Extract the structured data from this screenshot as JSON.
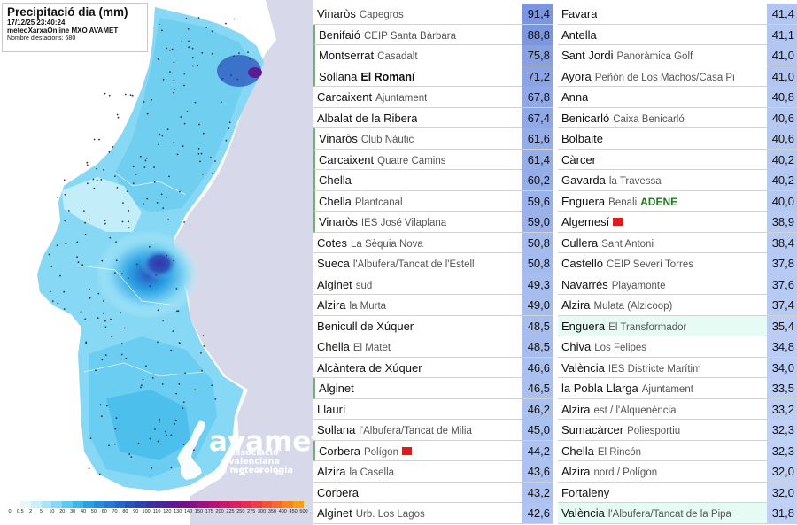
{
  "map": {
    "title": "Precipitació dia (mm)",
    "datetime": "17/12/25 23:40:24",
    "source": "meteoXarxaOnline MXO AVAMET",
    "stations": "Nombre d'estacions: 680",
    "logo_name": "avamet",
    "logo_sub_1": "associació valenciana",
    "logo_sub_2": "de meteorologia",
    "legend_labels": [
      "0",
      "0,5",
      "2",
      "5",
      "10",
      "20",
      "30",
      "40",
      "50",
      "60",
      "70",
      "80",
      "90",
      "100",
      "110",
      "120",
      "130",
      "140",
      "150",
      "175",
      "200",
      "225",
      "250",
      "275",
      "300",
      "350",
      "400",
      "450",
      "500"
    ],
    "legend_colors": [
      "#ffffff",
      "#e4f7fb",
      "#c9effa",
      "#a9e5f8",
      "#86d8f4",
      "#5ec9ef",
      "#3bb6ea",
      "#2aa0e3",
      "#238cdb",
      "#2479d3",
      "#2766c9",
      "#2a54bd",
      "#2d43b0",
      "#3a32a3",
      "#4a269b",
      "#5c1b92",
      "#6f138a",
      "#841283",
      "#9b137c",
      "#b21474",
      "#c9186b",
      "#d92060",
      "#e52c54",
      "#ee3d47",
      "#f25438",
      "#f46c2b",
      "#f5861f",
      "#f6a114"
    ],
    "sea_color": "#d8d8eb",
    "land_color": "#ffffff"
  },
  "table": {
    "left": [
      {
        "name": "Vinaròs",
        "sub": "Capegros",
        "value": "91,4"
      },
      {
        "name": "Benifaió",
        "sub": "CEIP Santa Bàrbara",
        "value": "88,8"
      },
      {
        "name": "Montserrat",
        "sub": "Casadalt",
        "value": "75,8"
      },
      {
        "name": "Sollana",
        "sub": "El Romaní",
        "value": "71,2"
      },
      {
        "name": "Carcaixent",
        "sub": "Ajuntament",
        "value": "67,8"
      },
      {
        "name": "Albalat de la Ribera",
        "sub": "",
        "value": "67,4"
      },
      {
        "name": "Vinaròs",
        "sub": "Club Nàutic",
        "value": "61,6"
      },
      {
        "name": "Carcaixent",
        "sub": "Quatre Camins",
        "value": "61,4"
      },
      {
        "name": "Chella",
        "sub": "",
        "value": "60,2"
      },
      {
        "name": "Chella",
        "sub": "Plantcanal",
        "value": "59,6"
      },
      {
        "name": "Vinaròs",
        "sub": "IES José Vilaplana",
        "value": "59,0"
      },
      {
        "name": "Cotes",
        "sub": "La Sèquia Nova",
        "value": "50,8"
      },
      {
        "name": "Sueca",
        "sub": "l'Albufera/Tancat de l'Estell",
        "value": "50,8"
      },
      {
        "name": "Alginet",
        "sub": "sud",
        "value": "49,3"
      },
      {
        "name": "Alzira",
        "sub": "la Murta",
        "value": "49,0"
      },
      {
        "name": "Benicull de Xúquer",
        "sub": "",
        "value": "48,5"
      },
      {
        "name": "Chella",
        "sub": "El Matet",
        "value": "48,5"
      },
      {
        "name": "Alcàntera de Xúquer",
        "sub": "",
        "value": "46,6"
      },
      {
        "name": "Alginet",
        "sub": "",
        "value": "46,5"
      },
      {
        "name": "Llaurí",
        "sub": "",
        "value": "46,2"
      },
      {
        "name": "Sollana",
        "sub": "l'Albufera/Tancat de Milia",
        "value": "45,0"
      },
      {
        "name": "Corbera",
        "sub": "Polígon",
        "value": "44,2"
      },
      {
        "name": "Alzira",
        "sub": "la Casella",
        "value": "43,6"
      },
      {
        "name": "Corbera",
        "sub": "",
        "value": "43,2"
      },
      {
        "name": "Alginet",
        "sub": "Urb. Los Lagos",
        "value": "42,6"
      }
    ],
    "right": [
      {
        "name": "Favara",
        "sub": "",
        "value": "41,4"
      },
      {
        "name": "Antella",
        "sub": "",
        "value": "41,1"
      },
      {
        "name": "Sant Jordi",
        "sub": "Panoràmica Golf",
        "value": "41,0"
      },
      {
        "name": "Ayora",
        "sub": "Peñón de Los Machos/Casa Pi",
        "value": "41,0"
      },
      {
        "name": "Anna",
        "sub": "",
        "value": "40,8"
      },
      {
        "name": "Benicarló",
        "sub": "Caixa Benicarló",
        "value": "40,6"
      },
      {
        "name": "Bolbaite",
        "sub": "",
        "value": "40,6"
      },
      {
        "name": "Càrcer",
        "sub": "",
        "value": "40,2"
      },
      {
        "name": "Gavarda",
        "sub": "la Travessa",
        "value": "40,2"
      },
      {
        "name": "Enguera",
        "sub": "Benali",
        "sub2": "ADENE",
        "value": "40,0"
      },
      {
        "name": "Algemesí",
        "sub": "",
        "value": "38,9"
      },
      {
        "name": "Cullera",
        "sub": "Sant Antoni",
        "value": "38,4"
      },
      {
        "name": "Castelló",
        "sub": "CEIP Severí Torres",
        "value": "37,8"
      },
      {
        "name": "Navarrés",
        "sub": "Playamonte",
        "value": "37,6"
      },
      {
        "name": "Alzira",
        "sub": "Mulata (Alzicoop)",
        "value": "37,4"
      },
      {
        "name": "Enguera",
        "sub": "El Transformador",
        "value": "35,4"
      },
      {
        "name": "Chiva",
        "sub": "Los Felipes",
        "value": "34,8"
      },
      {
        "name": "València",
        "sub": "IES Districte Marítim",
        "value": "34,0"
      },
      {
        "name": "la Pobla Llarga",
        "sub": "Ajuntament",
        "value": "33,5"
      },
      {
        "name": "Alzira",
        "sub": "est / l'Alquenència",
        "value": "33,2"
      },
      {
        "name": "Sumacàrcer",
        "sub": "Poliesportiu",
        "value": "32,3"
      },
      {
        "name": "Chella",
        "sub": "El Rincón",
        "value": "32,3"
      },
      {
        "name": "Alzira",
        "sub": "nord / Polígon",
        "value": "32,0"
      },
      {
        "name": "Fortaleny",
        "sub": "",
        "value": "32,0"
      },
      {
        "name": "València",
        "sub": "l'Albufera/Tancat de la Pipa",
        "value": "31,8"
      }
    ]
  },
  "value_colors": {
    "v91": "#7b95de",
    "v88": "#7d97df",
    "v75": "#88a1e3",
    "v71": "#8ba4e4",
    "v67": "#90a8e6",
    "v61": "#96aee8",
    "v59": "#9ab1e9",
    "v50": "#a5bbed",
    "v49": "#a7bdee",
    "v46": "#aac0ef",
    "v44": "#adc2f0",
    "v42": "#b0c4f1",
    "v41": "#b2c6f1",
    "v40": "#b4c8f2",
    "v38": "#b7caf3",
    "v35": "#bbcdf4",
    "v33": "#bdcff4",
    "v31": "#c0d1f5"
  }
}
